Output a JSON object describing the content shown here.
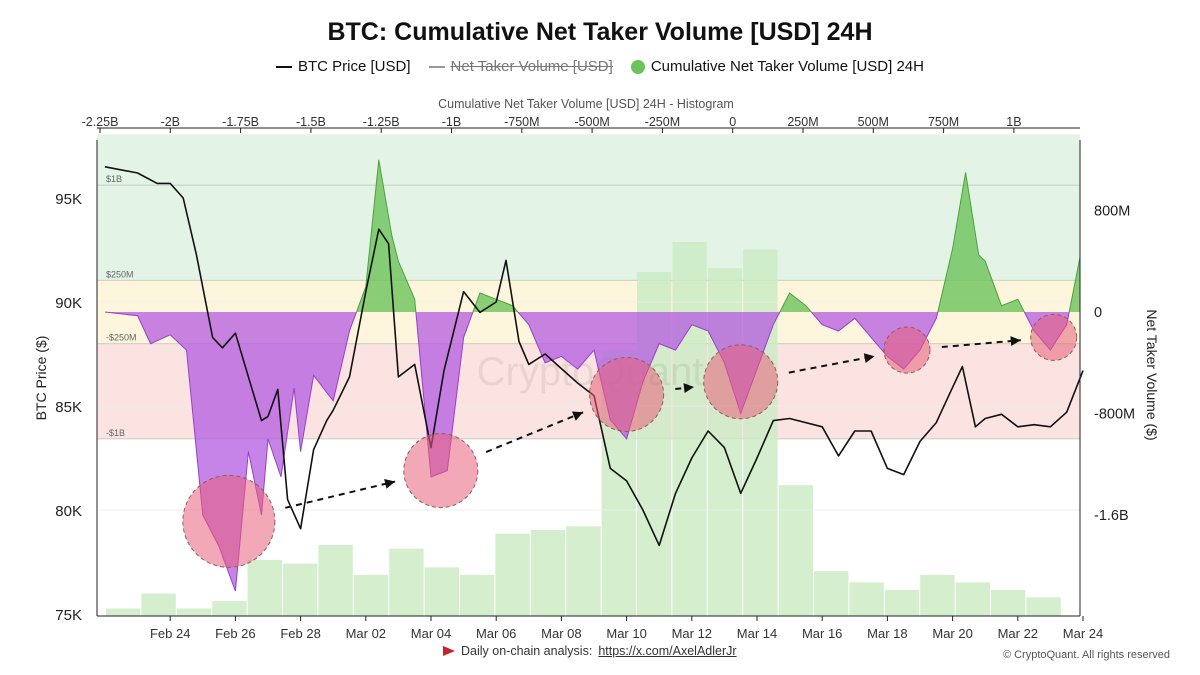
{
  "title": "BTC: Cumulative Net Taker Volume [USD] 24H",
  "legend": [
    {
      "label": "BTC Price [USD]",
      "state": "on",
      "color": "#111111"
    },
    {
      "label": "Net Taker Volume [USD]",
      "state": "off",
      "color": "#999999"
    },
    {
      "label": "Cumulative Net Taker Volume [USD] 24H",
      "state": "on",
      "color": "#6cc35a"
    }
  ],
  "footer": {
    "text": "Daily on-chain analysis:",
    "link": "https://x.com/AxelAdlerJr",
    "copyright": "© CryptoQuant. All rights reserved",
    "watermark": "CryptoQuant"
  },
  "colors": {
    "positive_area": "#6cc35a",
    "negative_area": "#b45be0",
    "price_line": "#111111",
    "histogram": "#cdebc6",
    "band_green": "#e3f4e6",
    "band_yellow": "#fdf6dc",
    "band_red": "#fbe3e1",
    "highlight": "#e8607a"
  },
  "chart_data": {
    "type": "line",
    "title": "BTC: Cumulative Net Taker Volume [USD] 24H",
    "x_dates": [
      "Feb 22",
      "Feb 23",
      "Feb 24",
      "Feb 25",
      "Feb 26",
      "Feb 27",
      "Feb 28",
      "Mar 01",
      "Mar 02",
      "Mar 03",
      "Mar 04",
      "Mar 05",
      "Mar 06",
      "Mar 07",
      "Mar 08",
      "Mar 09",
      "Mar 10",
      "Mar 11",
      "Mar 12",
      "Mar 13",
      "Mar 14",
      "Mar 15",
      "Mar 16",
      "Mar 17",
      "Mar 18",
      "Mar 19",
      "Mar 20",
      "Mar 21",
      "Mar 22",
      "Mar 23",
      "Mar 24"
    ],
    "x_tick_labels": [
      "Feb 24",
      "Feb 26",
      "Feb 28",
      "Mar 02",
      "Mar 04",
      "Mar 06",
      "Mar 08",
      "Mar 10",
      "Mar 12",
      "Mar 14",
      "Mar 16",
      "Mar 18",
      "Mar 20",
      "Mar 22",
      "Mar 24"
    ],
    "left_axis": {
      "label": "BTC Price ($)",
      "ticks": [
        "75K",
        "80K",
        "85K",
        "90K",
        "95K"
      ],
      "ylim": [
        75000,
        97500
      ]
    },
    "right_axis": {
      "label": "Net Taker Volume ($)",
      "ticks": [
        "800M",
        "0",
        "-800M",
        "-1.6B"
      ],
      "ylim": [
        -2400000000,
        1600000000
      ]
    },
    "top_axis": {
      "label": "Cumulative Net Taker Volume [USD] 24H - Histogram",
      "ticks": [
        "-2.25B",
        "-2B",
        "-1.75B",
        "-1.5B",
        "-1.25B",
        "-1B",
        "-750M",
        "-500M",
        "-250M",
        "0",
        "250M",
        "500M",
        "750M",
        "1B"
      ]
    },
    "threshold_lines": [
      {
        "label": "$1B",
        "value": 1000000000
      },
      {
        "label": "$250M",
        "value": 250000000
      },
      {
        "label": "-$250M",
        "value": -250000000
      },
      {
        "label": "-$1B",
        "value": -1000000000
      }
    ],
    "series": [
      {
        "name": "BTC Price [USD]",
        "points": [
          [
            "Feb 22",
            96500
          ],
          [
            "Feb 23",
            96200
          ],
          [
            "Feb 23.6",
            95700
          ],
          [
            "Feb 24",
            95700
          ],
          [
            "Feb 24.4",
            95000
          ],
          [
            "Feb 24.8",
            92300
          ],
          [
            "Feb 25",
            90700
          ],
          [
            "Feb 25.3",
            88300
          ],
          [
            "Feb 25.6",
            87800
          ],
          [
            "Feb 26",
            88500
          ],
          [
            "Feb 26.4",
            86400
          ],
          [
            "Feb 26.8",
            84300
          ],
          [
            "Feb 27",
            84500
          ],
          [
            "Feb 27.3",
            85800
          ],
          [
            "Feb 27.6",
            80500
          ],
          [
            "Feb 28",
            79100
          ],
          [
            "Feb 28.4",
            82900
          ],
          [
            "Feb 28.8",
            84300
          ],
          [
            "Mar 01",
            84800
          ],
          [
            "Mar 01.5",
            86400
          ],
          [
            "Mar 02",
            90500
          ],
          [
            "Mar 02.4",
            93500
          ],
          [
            "Mar 02.7",
            92800
          ],
          [
            "Mar 03",
            86400
          ],
          [
            "Mar 03.5",
            87000
          ],
          [
            "Mar 04",
            83000
          ],
          [
            "Mar 04.4",
            86700
          ],
          [
            "Mar 05",
            90500
          ],
          [
            "Mar 05.5",
            89500
          ],
          [
            "Mar 06",
            90000
          ],
          [
            "Mar 06.3",
            92000
          ],
          [
            "Mar 06.7",
            88100
          ],
          [
            "Mar 07",
            87000
          ],
          [
            "Mar 07.5",
            87500
          ],
          [
            "Mar 08",
            86800
          ],
          [
            "Mar 08.5",
            86100
          ],
          [
            "Mar 09",
            85500
          ],
          [
            "Mar 09.5",
            82000
          ],
          [
            "Mar 10",
            81400
          ],
          [
            "Mar 10.5",
            80000
          ],
          [
            "Mar 11",
            78300
          ],
          [
            "Mar 11.5",
            80800
          ],
          [
            "Mar 12",
            82500
          ],
          [
            "Mar 12.5",
            83800
          ],
          [
            "Mar 13",
            83000
          ],
          [
            "Mar 13.5",
            80800
          ],
          [
            "Mar 14",
            82500
          ],
          [
            "Mar 14.5",
            84300
          ],
          [
            "Mar 15",
            84400
          ],
          [
            "Mar 16",
            84000
          ],
          [
            "Mar 16.5",
            82600
          ],
          [
            "Mar 17",
            83800
          ],
          [
            "Mar 17.5",
            83800
          ],
          [
            "Mar 18",
            82000
          ],
          [
            "Mar 18.5",
            81700
          ],
          [
            "Mar 19",
            83300
          ],
          [
            "Mar 19.5",
            84200
          ],
          [
            "Mar 20",
            85900
          ],
          [
            "Mar 20.3",
            86900
          ],
          [
            "Mar 20.7",
            84000
          ],
          [
            "Mar 21",
            84400
          ],
          [
            "Mar 21.5",
            84600
          ],
          [
            "Mar 22",
            84000
          ],
          [
            "Mar 22.5",
            84100
          ],
          [
            "Mar 23",
            84000
          ],
          [
            "Mar 23.5",
            84700
          ],
          [
            "Mar 24",
            86700
          ]
        ]
      },
      {
        "name": "Cumulative Net Taker Volume [USD] 24H",
        "points": [
          [
            "Feb 22",
            0
          ],
          [
            "Feb 23",
            -30000000
          ],
          [
            "Feb 23.4",
            -250000000
          ],
          [
            "Feb 24",
            -180000000
          ],
          [
            "Feb 24.5",
            -300000000
          ],
          [
            "Feb 25",
            -1600000000
          ],
          [
            "Feb 25.5",
            -1850000000
          ],
          [
            "Feb 26",
            -2200000000
          ],
          [
            "Feb 26.4",
            -1100000000
          ],
          [
            "Feb 26.8",
            -1600000000
          ],
          [
            "Feb 27",
            -1000000000
          ],
          [
            "Feb 27.4",
            -1300000000
          ],
          [
            "Feb 27.8",
            -600000000
          ],
          [
            "Feb 28",
            -1100000000
          ],
          [
            "Feb 28.4",
            -500000000
          ],
          [
            "Mar 01",
            -700000000
          ],
          [
            "Mar 01.5",
            -150000000
          ],
          [
            "Mar 02",
            200000000
          ],
          [
            "Mar 02.4",
            1200000000
          ],
          [
            "Mar 02.8",
            600000000
          ],
          [
            "Mar 03",
            400000000
          ],
          [
            "Mar 03.5",
            100000000
          ],
          [
            "Mar 04",
            -1300000000
          ],
          [
            "Mar 04.5",
            -1250000000
          ],
          [
            "Mar 05",
            -200000000
          ],
          [
            "Mar 05.5",
            150000000
          ],
          [
            "Mar 06",
            100000000
          ],
          [
            "Mar 06.5",
            50000000
          ],
          [
            "Mar 07",
            -100000000
          ],
          [
            "Mar 07.5",
            -400000000
          ],
          [
            "Mar 08",
            -350000000
          ],
          [
            "Mar 08.5",
            -450000000
          ],
          [
            "Mar 09",
            -300000000
          ],
          [
            "Mar 09.5",
            -850000000
          ],
          [
            "Mar 10",
            -1000000000
          ],
          [
            "Mar 10.5",
            -550000000
          ],
          [
            "Mar 11",
            -250000000
          ],
          [
            "Mar 11.5",
            -300000000
          ],
          [
            "Mar 12",
            -100000000
          ],
          [
            "Mar 12.5",
            -150000000
          ],
          [
            "Mar 13",
            -400000000
          ],
          [
            "Mar 13.5",
            -800000000
          ],
          [
            "Mar 14",
            -450000000
          ],
          [
            "Mar 14.5",
            -100000000
          ],
          [
            "Mar 15",
            150000000
          ],
          [
            "Mar 15.5",
            50000000
          ],
          [
            "Mar 16",
            -100000000
          ],
          [
            "Mar 16.5",
            -150000000
          ],
          [
            "Mar 17",
            -50000000
          ],
          [
            "Mar 17.5",
            -200000000
          ],
          [
            "Mar 18",
            -350000000
          ],
          [
            "Mar 18.5",
            -450000000
          ],
          [
            "Mar 19",
            -300000000
          ],
          [
            "Mar 19.5",
            -50000000
          ],
          [
            "Mar 20",
            500000000
          ],
          [
            "Mar 20.4",
            1100000000
          ],
          [
            "Mar 20.8",
            450000000
          ],
          [
            "Mar 21",
            400000000
          ],
          [
            "Mar 21.5",
            50000000
          ],
          [
            "Mar 22",
            100000000
          ],
          [
            "Mar 22.5",
            -150000000
          ],
          [
            "Mar 23",
            -300000000
          ],
          [
            "Mar 23.5",
            -100000000
          ],
          [
            "Mar 24",
            550000000
          ]
        ]
      }
    ],
    "histogram_bars": [
      {
        "bin": "-2.25B",
        "value": 0.02
      },
      {
        "bin": "-2.125B",
        "value": 0.06
      },
      {
        "bin": "-2B",
        "value": 0.02
      },
      {
        "bin": "-1.875B",
        "value": 0.04
      },
      {
        "bin": "-1.75B",
        "value": 0.15
      },
      {
        "bin": "-1.625B",
        "value": 0.14
      },
      {
        "bin": "-1.5B",
        "value": 0.19
      },
      {
        "bin": "-1.375B",
        "value": 0.11
      },
      {
        "bin": "-1.25B",
        "value": 0.18
      },
      {
        "bin": "-1.125B",
        "value": 0.13
      },
      {
        "bin": "-1B",
        "value": 0.11
      },
      {
        "bin": "-0.875B",
        "value": 0.22
      },
      {
        "bin": "-0.75B",
        "value": 0.23
      },
      {
        "bin": "-0.625B",
        "value": 0.24
      },
      {
        "bin": "-0.5B",
        "value": 0.71
      },
      {
        "bin": "-0.375B",
        "value": 0.92
      },
      {
        "bin": "-0.25B",
        "value": 1.0
      },
      {
        "bin": "-0.125B",
        "value": 0.93
      },
      {
        "bin": "0",
        "value": 0.98
      },
      {
        "bin": "0.125B",
        "value": 0.35
      },
      {
        "bin": "0.25B",
        "value": 0.12
      },
      {
        "bin": "0.375B",
        "value": 0.09
      },
      {
        "bin": "0.5B",
        "value": 0.07
      },
      {
        "bin": "0.625B",
        "value": 0.11
      },
      {
        "bin": "0.75B",
        "value": 0.09
      },
      {
        "bin": "0.875B",
        "value": 0.07
      },
      {
        "bin": "1B",
        "value": 0.05
      }
    ],
    "highlight_circles": [
      {
        "date": "Feb 25.8",
        "value": -1650000000,
        "size": "large"
      },
      {
        "date": "Mar 04.3",
        "value": -1250000000,
        "size": "medium"
      },
      {
        "date": "Mar 10",
        "value": -650000000,
        "size": "medium"
      },
      {
        "date": "Mar 13.5",
        "value": -550000000,
        "size": "medium"
      },
      {
        "date": "Mar 18.6",
        "value": -300000000,
        "size": "small"
      },
      {
        "date": "Mar 23.1",
        "value": -200000000,
        "size": "small"
      }
    ],
    "grid": true
  }
}
